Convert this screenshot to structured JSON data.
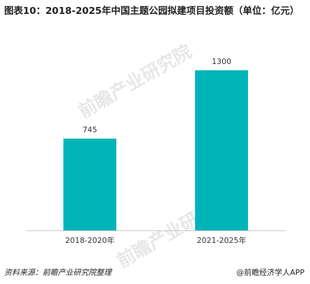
{
  "title": "图表10：2018-2025年中国主题公园拟建项目投资额（单位：亿元）",
  "source": "资料来源：前瞻产业研究院整理",
  "credit": "@前瞻经济学人APP",
  "watermark": "前瞻产业研究院",
  "chart_data": {
    "type": "bar",
    "title": "图表10：2018-2025年中国主题公园拟建项目投资额（单位：亿元）",
    "categories": [
      "2018-2020年",
      "2021-2025年"
    ],
    "values": [
      745,
      1300
    ],
    "value_labels": [
      "745",
      "1300"
    ],
    "ylim": [
      0,
      1300
    ],
    "grid": false,
    "legend": "none",
    "bar_color": "#00b5b8",
    "axis_color": "#c8c8c8"
  }
}
